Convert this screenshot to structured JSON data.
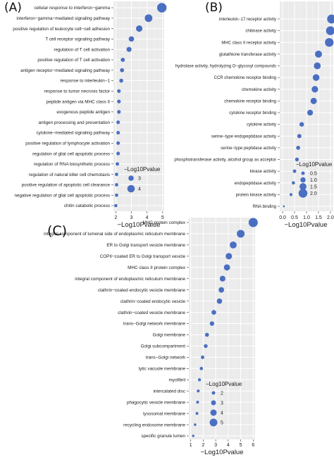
{
  "chart_data": [
    {
      "panel_label": "(A)",
      "type": "scatter",
      "categories": [
        "cellular response to interferon−gamma",
        "interferon−gamma−mediated signaling pathway",
        "positive regulation of leukocyte cell−cell adhesion",
        "T cell receptor signaling pathway",
        "regulation of T cell activation",
        "positive regulation of T cell activation",
        "antigen receptor−mediated signaling pathway",
        "response to interleukin−1",
        "response to tumor necrosis factor",
        "peptide antigen via MHC class II",
        "exogenous peptide antigen",
        "antigen processing and presentation",
        "cytokine−mediated signaling pathway",
        "positive regulation of lymphocyte activation",
        "regulation of glial cell apoptotic process",
        "regulation of RNA biosynthetic process",
        "regulation of natural killer cell chemotaxis",
        "positive regulation of apoptotic cell clearance",
        "negative regulation of glial cell apoptotic process",
        "chitin catabolic process"
      ],
      "values": [
        4.95,
        4.1,
        3.5,
        3.0,
        2.85,
        2.45,
        2.4,
        2.35,
        2.2,
        2.2,
        2.2,
        2.15,
        2.15,
        2.15,
        2.15,
        2.1,
        2.05,
        2.05,
        2.05,
        2.0
      ],
      "xlabel": "−Log10Pvalue",
      "xticks": [
        2,
        3,
        4,
        5
      ],
      "xlim": [
        1.85,
        5.1
      ],
      "legend": {
        "title": "−Log10Pvalue",
        "entries": [
          {
            "label": "3",
            "value": 3
          },
          {
            "label": "4",
            "value": 4
          }
        ],
        "size_range": [
          2,
          5
        ]
      },
      "grid": true,
      "point_color": "#4a6fc2"
    },
    {
      "panel_label": "(B)",
      "type": "scatter",
      "categories": [
        "interleukin−17 receptor activity",
        "chitinase activity",
        "MHC class II receptor activity",
        "glutathione transferase activity",
        "hydrolase activity, hydrolyzing O−glycosyl compounds",
        "CCR chemokine receptor binding",
        "chemokine activity",
        "chemokine receptor binding",
        "cytokine receptor binding",
        "cytokine activity",
        "serine−type endopeptidase activity",
        "serine−type peptidase activity",
        "phosphotransferase activity, alcohol group as acceptor",
        "kinase activity",
        "endopeptidase activity",
        "protein kinase activity",
        "RNA binding"
      ],
      "values": [
        2.05,
        2.0,
        1.95,
        1.5,
        1.45,
        1.4,
        1.35,
        1.3,
        1.15,
        0.8,
        0.7,
        0.65,
        0.6,
        0.5,
        0.45,
        0.35,
        0.05
      ],
      "xlabel": "−Log10Pvalue",
      "xticks": [
        0.0,
        0.5,
        1.0,
        1.5,
        2.0
      ],
      "xtick_labels": [
        "0.0",
        "0.5",
        "1.0",
        "1.5",
        "2.0"
      ],
      "xlim": [
        -0.12,
        2.12
      ],
      "legend": {
        "title": "−Log10Pvalue",
        "entries": [
          {
            "label": "0.5",
            "value": 0.5
          },
          {
            "label": "1.0",
            "value": 1.0
          },
          {
            "label": "1.5",
            "value": 1.5
          },
          {
            "label": "2.0",
            "value": 2.0
          }
        ],
        "size_range": [
          0,
          2.1
        ]
      },
      "grid": true,
      "point_color": "#4a6fc2"
    },
    {
      "panel_label": "(C)",
      "type": "scatter",
      "categories": [
        "MHC protein complex",
        "integral component of lumenal side of endoplasmic reticulum membrane",
        "ER to Golgi transport vesicle membrane",
        "COPII−coated ER to Golgi transport vesicle",
        "MHC class II protein complex",
        "integral component of endoplasmic reticulum membrane",
        "clathrin−coated endocytic vesicle membrane",
        "clathrin−coated endocytic vesicle",
        "clathrin−coated vesicle membrane",
        "trans−Golgi network membrane",
        "Golgi membrane",
        "Golgi subcompartment",
        "trans−Golgi network",
        "lytic vacuole membrane",
        "myofibril",
        "intercalated disc",
        "phagocytic vesicle membrane",
        "lysosomal membrane",
        "recycling endosome membrane",
        "specific granule lumen"
      ],
      "values": [
        6.0,
        5.0,
        4.4,
        4.05,
        3.9,
        3.55,
        3.45,
        3.3,
        2.85,
        2.7,
        2.3,
        2.2,
        1.95,
        1.85,
        1.7,
        1.6,
        1.55,
        1.5,
        1.35,
        1.2
      ],
      "xlabel": "−Log10Pvalue",
      "xticks": [
        1,
        2,
        3,
        4,
        5,
        6
      ],
      "xlim": [
        0.85,
        6.15
      ],
      "legend": {
        "title": "−Log10Pvalue",
        "entries": [
          {
            "label": "2",
            "value": 2
          },
          {
            "label": "3",
            "value": 3
          },
          {
            "label": "4",
            "value": 4
          },
          {
            "label": "5",
            "value": 5
          }
        ],
        "size_range": [
          1,
          6
        ]
      },
      "grid": true,
      "point_color": "#4a6fc2"
    }
  ]
}
